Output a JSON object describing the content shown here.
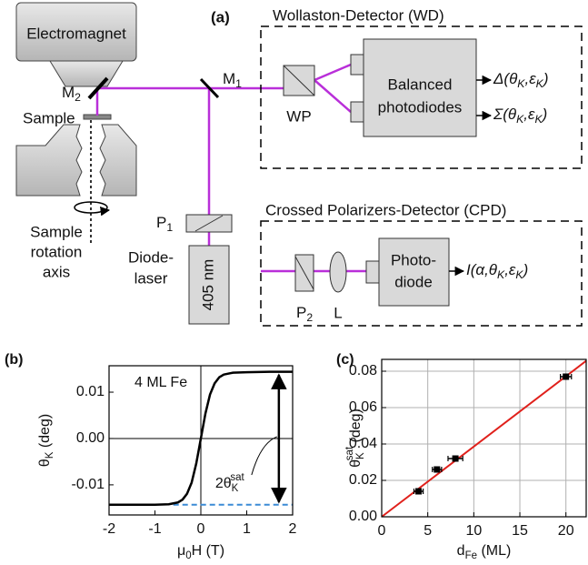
{
  "diagram": {
    "panel_label": "(a)",
    "electromagnet": "Electromagnet",
    "m2": [
      "M",
      {
        "sub": "2"
      }
    ],
    "m1": [
      "M",
      {
        "sub": "1"
      }
    ],
    "sample": "Sample",
    "rotation_axis": [
      "Sample",
      "rotation",
      "axis"
    ],
    "p1": [
      "P",
      {
        "sub": "1"
      }
    ],
    "diode_laser": [
      "Diode-",
      "laser"
    ],
    "wavelength": "405 nm",
    "wd": {
      "title": "Wollaston-Detector (WD)",
      "prism": "WP",
      "detector": [
        "Balanced",
        "photodiodes"
      ],
      "outputs": [
        [
          "Δ(θ",
          {
            "sub": "K"
          },
          ",ε",
          {
            "sub": "K"
          },
          ")"
        ],
        [
          "Σ(θ",
          {
            "sub": "K"
          },
          ",ε",
          {
            "sub": "K"
          },
          ")"
        ]
      ]
    },
    "cpd": {
      "title": "Crossed Polarizers-Detector (CPD)",
      "polarizer": [
        "P",
        {
          "sub": "2"
        }
      ],
      "lens": "L",
      "detector": [
        "Photo-",
        "diode"
      ],
      "output": [
        "I(α,θ",
        {
          "sub": "K"
        },
        ",ε",
        {
          "sub": "K"
        },
        ")"
      ]
    }
  },
  "chart_data": [
    {
      "type": "line",
      "title": "(b)",
      "annotation": "4 ML Fe",
      "xlabel": [
        "μ",
        {
          "sub": "0"
        },
        "H (T)"
      ],
      "ylabel": [
        "θ",
        {
          "sub": "K"
        },
        " (deg)"
      ],
      "x": [
        -2,
        -1.5,
        -1,
        -0.7,
        -0.5,
        -0.4,
        -0.3,
        -0.2,
        -0.1,
        0,
        0.1,
        0.2,
        0.3,
        0.4,
        0.5,
        0.7,
        1,
        1.5,
        2
      ],
      "values": [
        -0.0143,
        -0.0143,
        -0.0143,
        -0.0142,
        -0.0138,
        -0.0132,
        -0.0119,
        -0.0095,
        -0.0054,
        0,
        0.0054,
        0.0095,
        0.0119,
        0.0132,
        0.0138,
        0.0142,
        0.0143,
        0.0144,
        0.0144
      ],
      "color": "#000000",
      "xlim": [
        -2,
        2
      ],
      "ylim": [
        -0.0165,
        0.0157
      ],
      "xticks": [
        -2,
        -1,
        0,
        1,
        2
      ],
      "yticks": [
        -0.01,
        {
          "value": 0,
          "label": "0.00"
        },
        0.01
      ],
      "hlines": [
        0
      ],
      "vlines": [
        0
      ],
      "reference": {
        "y": -0.0143,
        "x": [
          -0.6,
          2
        ],
        "color": "#3b8bd6"
      },
      "arrow": {
        "x": 1.7,
        "y": [
          -0.0143,
          0.0143
        ],
        "label": [
          "2θ",
          {
            "sub": "K"
          },
          {
            "sup": "sat"
          }
        ]
      },
      "grid": false
    },
    {
      "type": "scatter",
      "title": "(c)",
      "xlabel": [
        "d",
        {
          "sub": "Fe"
        },
        " (ML)"
      ],
      "ylabel": [
        "θ",
        {
          "sub": "K"
        },
        {
          "sup": "sat"
        },
        " (deg)"
      ],
      "x": [
        4,
        6,
        8,
        20
      ],
      "values": [
        0.014,
        0.026,
        0.032,
        0.077
      ],
      "xerr": [
        0.5,
        0.5,
        0.8,
        0.6
      ],
      "color": "#000000",
      "fit": {
        "x": [
          0,
          22.2
        ],
        "values": [
          0,
          0.0857
        ],
        "color": "#e0201b"
      },
      "xlim": [
        0,
        22.2
      ],
      "ylim": [
        0,
        0.0865
      ],
      "xticks": [
        0,
        5,
        10,
        15,
        20
      ],
      "yticks": [
        {
          "value": 0,
          "label": "0.00"
        },
        0.02,
        0.04,
        0.06,
        0.08
      ],
      "grid": true
    }
  ]
}
